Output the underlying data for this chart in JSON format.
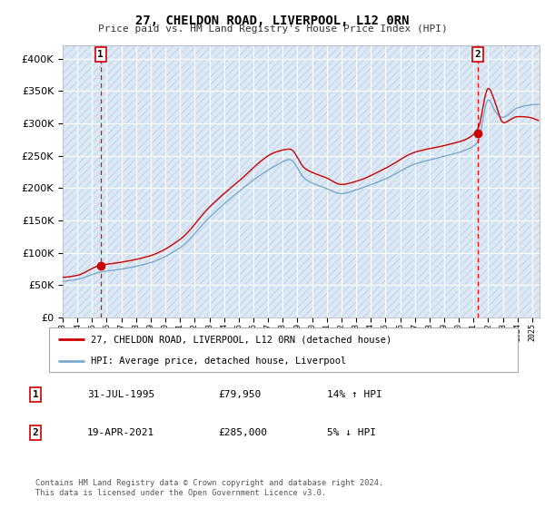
{
  "title": "27, CHELDON ROAD, LIVERPOOL, L12 0RN",
  "subtitle": "Price paid vs. HM Land Registry's House Price Index (HPI)",
  "background_color": "#ffffff",
  "plot_bg_color": "#dce9f5",
  "grid_color": "#ffffff",
  "hatch_color": "#c8d8ea",
  "hpi_color": "#7aaacc",
  "price_color": "#cc0000",
  "sale1_date": 1995.58,
  "sale1_price": 79950,
  "sale1_label": "1",
  "sale2_date": 2021.3,
  "sale2_price": 285000,
  "sale2_label": "2",
  "legend_price_label": "27, CHELDON ROAD, LIVERPOOL, L12 0RN (detached house)",
  "legend_hpi_label": "HPI: Average price, detached house, Liverpool",
  "note1_date": "31-JUL-1995",
  "note1_price": "£79,950",
  "note1_hpi": "14% ↑ HPI",
  "note2_date": "19-APR-2021",
  "note2_price": "£285,000",
  "note2_hpi": "5% ↓ HPI",
  "footer": "Contains HM Land Registry data © Crown copyright and database right 2024.\nThis data is licensed under the Open Government Licence v3.0.",
  "xmin": 1993.0,
  "xmax": 2025.5,
  "ymin": 0,
  "ymax": 420000
}
